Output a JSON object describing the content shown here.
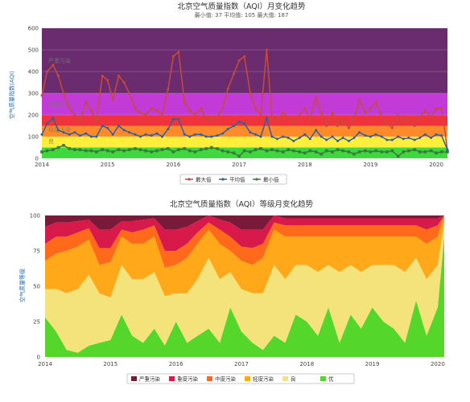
{
  "chart_data": [
    {
      "type": "line",
      "title": "北京空气质量指数（AQI）月变化趋势",
      "subtitle": "最小值: 37 平均值: 105 最大值: 187",
      "ylabel": "空气质量指数(AQI)",
      "ylim": [
        0,
        600
      ],
      "yticks": [
        "0",
        "100",
        "200",
        "300",
        "400",
        "500",
        "600"
      ],
      "x_start": 2014.0,
      "x_end": 2020.17,
      "xticks": [
        "2014",
        "2015",
        "2016",
        "2017",
        "2018",
        "2019",
        "2020"
      ],
      "bands": [
        {
          "name": "严重污染",
          "from": 300,
          "to": 600,
          "color": "#6a2c6f"
        },
        {
          "name": "重度污染",
          "from": 200,
          "to": 300,
          "color": "#c23bd6"
        },
        {
          "name": "中度污染",
          "from": 150,
          "to": 200,
          "color": "#f0323c"
        },
        {
          "name": "轻度污染",
          "from": 100,
          "to": 150,
          "color": "#ff8a2a"
        },
        {
          "name": "良",
          "from": 50,
          "to": 100,
          "color": "#ffef3a"
        },
        {
          "name": "优",
          "from": 0,
          "to": 50,
          "color": "#3ed83e"
        }
      ],
      "band_labels": [
        {
          "text": "严重污染",
          "y": 440
        },
        {
          "text": "重度污染",
          "y": 240
        },
        {
          "text": "轻度污染",
          "y": 125
        },
        {
          "text": "良",
          "y": 70
        }
      ],
      "legend": [
        "最大值",
        "平均值",
        "最小值"
      ],
      "series": [
        {
          "name": "最大值",
          "color": "#c84a3a",
          "x": [
            2014.0,
            2014.08,
            2014.17,
            2014.25,
            2014.33,
            2014.42,
            2014.5,
            2014.58,
            2014.67,
            2014.75,
            2014.83,
            2014.92,
            2015.0,
            2015.08,
            2015.17,
            2015.25,
            2015.33,
            2015.42,
            2015.5,
            2015.58,
            2015.67,
            2015.75,
            2015.83,
            2015.92,
            2016.0,
            2016.08,
            2016.17,
            2016.25,
            2016.33,
            2016.42,
            2016.5,
            2016.58,
            2016.67,
            2016.75,
            2016.83,
            2016.92,
            2017.0,
            2017.08,
            2017.17,
            2017.25,
            2017.33,
            2017.42,
            2017.5,
            2017.58,
            2017.67,
            2017.75,
            2017.83,
            2017.92,
            2018.0,
            2018.08,
            2018.17,
            2018.25,
            2018.33,
            2018.42,
            2018.5,
            2018.58,
            2018.67,
            2018.75,
            2018.83,
            2018.92,
            2019.0,
            2019.08,
            2019.17,
            2019.25,
            2019.33,
            2019.42,
            2019.5,
            2019.58,
            2019.67,
            2019.75,
            2019.83,
            2019.92,
            2020.0,
            2020.08,
            2020.17
          ],
          "values": [
            290,
            400,
            430,
            380,
            300,
            230,
            200,
            170,
            260,
            220,
            170,
            380,
            360,
            270,
            380,
            350,
            300,
            230,
            210,
            200,
            230,
            220,
            200,
            320,
            470,
            490,
            260,
            220,
            200,
            230,
            180,
            180,
            190,
            230,
            320,
            390,
            450,
            470,
            300,
            230,
            200,
            500,
            190,
            170,
            210,
            190,
            160,
            200,
            230,
            180,
            280,
            210,
            150,
            210,
            150,
            180,
            140,
            180,
            270,
            210,
            230,
            260,
            190,
            160,
            140,
            200,
            170,
            180,
            150,
            190,
            220,
            190,
            230,
            230,
            40
          ]
        },
        {
          "name": "平均值",
          "color": "#2f5fa0",
          "x": [
            2014.0,
            2014.08,
            2014.17,
            2014.25,
            2014.33,
            2014.42,
            2014.5,
            2014.58,
            2014.67,
            2014.75,
            2014.83,
            2014.92,
            2015.0,
            2015.08,
            2015.17,
            2015.25,
            2015.33,
            2015.42,
            2015.5,
            2015.58,
            2015.67,
            2015.75,
            2015.83,
            2015.92,
            2016.0,
            2016.08,
            2016.17,
            2016.25,
            2016.33,
            2016.42,
            2016.5,
            2016.58,
            2016.67,
            2016.75,
            2016.83,
            2016.92,
            2017.0,
            2017.08,
            2017.17,
            2017.25,
            2017.33,
            2017.42,
            2017.5,
            2017.58,
            2017.67,
            2017.75,
            2017.83,
            2017.92,
            2018.0,
            2018.08,
            2018.17,
            2018.25,
            2018.33,
            2018.42,
            2018.5,
            2018.58,
            2018.67,
            2018.75,
            2018.83,
            2018.92,
            2019.0,
            2019.08,
            2019.17,
            2019.25,
            2019.33,
            2019.42,
            2019.5,
            2019.58,
            2019.67,
            2019.75,
            2019.83,
            2019.92,
            2020.0,
            2020.08,
            2020.17
          ],
          "values": [
            110,
            160,
            185,
            130,
            120,
            110,
            120,
            105,
            115,
            100,
            100,
            150,
            140,
            110,
            150,
            130,
            120,
            110,
            100,
            110,
            105,
            115,
            100,
            135,
            180,
            180,
            110,
            100,
            110,
            110,
            100,
            100,
            105,
            115,
            135,
            150,
            170,
            160,
            120,
            110,
            100,
            185,
            100,
            90,
            100,
            95,
            80,
            95,
            110,
            90,
            130,
            100,
            85,
            100,
            80,
            95,
            80,
            95,
            120,
            105,
            100,
            110,
            100,
            85,
            85,
            100,
            90,
            95,
            85,
            95,
            110,
            95,
            110,
            105,
            40
          ]
        },
        {
          "name": "最小值",
          "color": "#3a7a3a",
          "x": [
            2014.0,
            2014.08,
            2014.17,
            2014.25,
            2014.33,
            2014.42,
            2014.5,
            2014.58,
            2014.67,
            2014.75,
            2014.83,
            2014.92,
            2015.0,
            2015.08,
            2015.17,
            2015.25,
            2015.33,
            2015.42,
            2015.5,
            2015.58,
            2015.67,
            2015.75,
            2015.83,
            2015.92,
            2016.0,
            2016.08,
            2016.17,
            2016.25,
            2016.33,
            2016.42,
            2016.5,
            2016.58,
            2016.67,
            2016.75,
            2016.83,
            2016.92,
            2017.0,
            2017.08,
            2017.17,
            2017.25,
            2017.33,
            2017.42,
            2017.5,
            2017.58,
            2017.67,
            2017.75,
            2017.83,
            2017.92,
            2018.0,
            2018.08,
            2018.17,
            2018.25,
            2018.33,
            2018.42,
            2018.5,
            2018.58,
            2018.67,
            2018.75,
            2018.83,
            2018.92,
            2019.0,
            2019.08,
            2019.17,
            2019.25,
            2019.33,
            2019.42,
            2019.5,
            2019.58,
            2019.67,
            2019.75,
            2019.83,
            2019.92,
            2020.0,
            2020.08,
            2020.17
          ],
          "values": [
            30,
            35,
            40,
            50,
            60,
            45,
            40,
            40,
            35,
            35,
            30,
            40,
            35,
            30,
            40,
            35,
            40,
            45,
            40,
            35,
            30,
            35,
            40,
            45,
            30,
            40,
            45,
            35,
            30,
            40,
            45,
            50,
            45,
            35,
            30,
            25,
            10,
            35,
            30,
            40,
            45,
            35,
            40,
            35,
            30,
            40,
            35,
            30,
            25,
            35,
            30,
            20,
            35,
            30,
            40,
            35,
            30,
            20,
            30,
            35,
            30,
            35,
            30,
            30,
            35,
            10,
            30,
            35,
            40,
            30,
            30,
            35,
            25,
            30,
            30
          ]
        }
      ]
    },
    {
      "type": "area",
      "title": "北京空气质量指数（AQI）等级月变化趋势",
      "ylabel": "空气质量等级",
      "ylim": [
        0,
        100
      ],
      "yticks": [
        "0",
        "25",
        "50",
        "75",
        "100"
      ],
      "x_start": 2014.0,
      "x_end": 2020.1,
      "xticks": [
        "2014",
        "2015",
        "2016",
        "2017",
        "2018",
        "2019",
        "2020"
      ],
      "legend": [
        "严重污染",
        "重度污染",
        "中度污染",
        "轻度污染",
        "良",
        "优"
      ],
      "x": [
        2014.0,
        2014.17,
        2014.33,
        2014.5,
        2014.67,
        2014.83,
        2015.0,
        2015.17,
        2015.33,
        2015.5,
        2015.67,
        2015.83,
        2016.0,
        2016.17,
        2016.33,
        2016.5,
        2016.67,
        2016.83,
        2017.0,
        2017.17,
        2017.33,
        2017.5,
        2017.67,
        2017.83,
        2018.0,
        2018.17,
        2018.33,
        2018.5,
        2018.67,
        2018.83,
        2019.0,
        2019.17,
        2019.33,
        2019.5,
        2019.67,
        2019.83,
        2020.0,
        2020.1
      ],
      "series": [
        {
          "name": "优",
          "color": "#55d62a",
          "values": [
            28,
            18,
            5,
            3,
            8,
            10,
            12,
            30,
            15,
            10,
            20,
            8,
            25,
            10,
            15,
            20,
            10,
            35,
            18,
            10,
            5,
            15,
            10,
            30,
            25,
            15,
            35,
            10,
            30,
            20,
            35,
            25,
            20,
            10,
            40,
            15,
            35,
            85
          ]
        },
        {
          "name": "良",
          "color": "#f3e37a",
          "values": [
            20,
            30,
            40,
            45,
            50,
            35,
            30,
            35,
            40,
            45,
            40,
            35,
            20,
            35,
            40,
            50,
            45,
            25,
            30,
            35,
            40,
            50,
            45,
            35,
            40,
            45,
            30,
            50,
            35,
            40,
            30,
            40,
            45,
            50,
            30,
            40,
            30,
            10
          ]
        },
        {
          "name": "轻度污染",
          "color": "#ffa81a",
          "values": [
            20,
            25,
            30,
            30,
            25,
            20,
            25,
            20,
            25,
            25,
            25,
            20,
            20,
            25,
            25,
            20,
            25,
            15,
            20,
            20,
            25,
            25,
            30,
            20,
            20,
            25,
            20,
            25,
            20,
            25,
            20,
            20,
            20,
            25,
            15,
            25,
            20,
            5
          ]
        },
        {
          "name": "中度污染",
          "color": "#ff6a1a",
          "values": [
            12,
            12,
            10,
            10,
            8,
            12,
            10,
            5,
            8,
            10,
            8,
            12,
            10,
            10,
            8,
            5,
            10,
            10,
            10,
            12,
            10,
            5,
            8,
            8,
            8,
            8,
            8,
            8,
            8,
            8,
            8,
            8,
            8,
            8,
            8,
            10,
            8,
            0
          ]
        },
        {
          "name": "重度污染",
          "color": "#d81a4a",
          "values": [
            12,
            10,
            10,
            8,
            6,
            13,
            13,
            6,
            8,
            7,
            5,
            15,
            15,
            12,
            8,
            5,
            7,
            10,
            12,
            13,
            10,
            5,
            5,
            5,
            5,
            5,
            5,
            5,
            5,
            5,
            5,
            5,
            5,
            5,
            5,
            8,
            5,
            0
          ]
        },
        {
          "name": "严重污染",
          "color": "#7a1a3a",
          "values": [
            8,
            5,
            5,
            4,
            3,
            10,
            10,
            4,
            4,
            3,
            2,
            10,
            10,
            8,
            4,
            0,
            3,
            5,
            10,
            10,
            10,
            0,
            2,
            2,
            2,
            2,
            2,
            2,
            2,
            2,
            2,
            2,
            2,
            2,
            2,
            2,
            2,
            0
          ]
        }
      ]
    }
  ]
}
